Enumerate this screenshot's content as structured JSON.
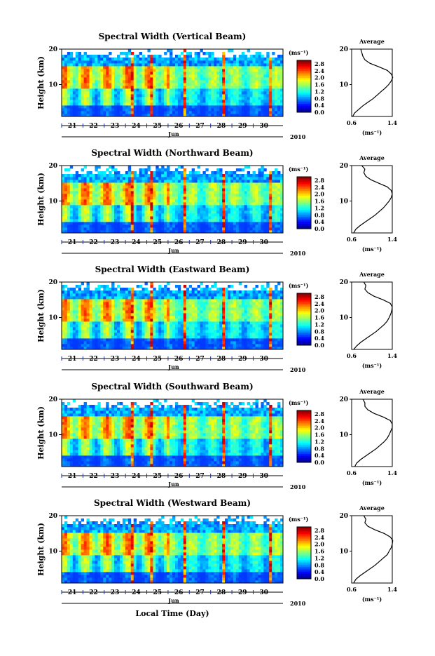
{
  "figure": {
    "xlabel": "Local Time (Day)",
    "ylabel": "Height (km)",
    "month": "Jun",
    "year": "2010",
    "unit": "(ms⁻¹)",
    "avg_title": "Average",
    "avg_xlabel": "(ms⁻¹)"
  },
  "chart_data": [
    {
      "type": "heatmap",
      "title": "Spectral Width (Vertical Beam)",
      "xlabel": "Jun",
      "ylabel": "Height (km)",
      "x_ticks": [
        "21",
        "22",
        "23",
        "24",
        "25",
        "26",
        "27",
        "28",
        "29",
        "30"
      ],
      "y_ticks": [
        "10",
        "20"
      ],
      "ylim": [
        1,
        20
      ],
      "colorbar": {
        "label": "(ms⁻¹)",
        "ticks": [
          "0.0",
          "0.4",
          "0.8",
          "1.2",
          "1.6",
          "2.0",
          "2.4",
          "2.8"
        ],
        "range": [
          0,
          3.0
        ]
      },
      "average_profile": {
        "title": "Average",
        "xlabel": "(ms⁻¹)",
        "xlim": [
          0.6,
          1.4
        ],
        "x_ticks": [
          "0.6",
          "1.4"
        ],
        "y_ticks": [
          "10",
          "20"
        ],
        "heights": [
          1,
          2,
          3,
          4,
          5,
          6,
          7,
          8,
          9,
          10,
          11,
          12,
          13,
          14,
          15,
          16,
          17,
          18,
          19,
          20
        ],
        "values": [
          0.62,
          0.66,
          0.74,
          0.82,
          0.92,
          1.02,
          1.1,
          1.18,
          1.26,
          1.33,
          1.38,
          1.41,
          1.38,
          1.3,
          1.14,
          0.96,
          0.86,
          0.82,
          0.8,
          0.78
        ]
      }
    },
    {
      "type": "heatmap",
      "title": "Spectral Width (Northward Beam)",
      "xlabel": "Jun",
      "ylabel": "Height (km)",
      "x_ticks": [
        "21",
        "22",
        "23",
        "24",
        "25",
        "26",
        "27",
        "28",
        "29",
        "30"
      ],
      "y_ticks": [
        "10",
        "20"
      ],
      "ylim": [
        1,
        20
      ],
      "colorbar": {
        "label": "(ms⁻¹)",
        "ticks": [
          "0.0",
          "0.4",
          "0.8",
          "1.2",
          "1.6",
          "2.0",
          "2.4",
          "2.8"
        ],
        "range": [
          0,
          3.0
        ]
      },
      "average_profile": {
        "title": "Average",
        "xlabel": "(ms⁻¹)",
        "xlim": [
          0.6,
          1.4
        ],
        "x_ticks": [
          "0.6",
          "1.4"
        ],
        "y_ticks": [
          "10",
          "20"
        ],
        "heights": [
          1,
          2,
          3,
          4,
          5,
          6,
          7,
          8,
          9,
          10,
          11,
          12,
          13,
          14,
          15,
          16,
          17,
          18,
          19,
          20
        ],
        "values": [
          0.64,
          0.68,
          0.76,
          0.86,
          0.96,
          1.06,
          1.14,
          1.22,
          1.28,
          1.34,
          1.38,
          1.4,
          1.38,
          1.3,
          1.14,
          0.98,
          0.88,
          0.84,
          0.86,
          0.8
        ]
      }
    },
    {
      "type": "heatmap",
      "title": "Spectral Width (Eastward Beam)",
      "xlabel": "Jun",
      "ylabel": "Height (km)",
      "x_ticks": [
        "21",
        "22",
        "23",
        "24",
        "25",
        "26",
        "27",
        "28",
        "29",
        "30"
      ],
      "y_ticks": [
        "10",
        "20"
      ],
      "ylim": [
        1,
        20
      ],
      "colorbar": {
        "label": "(ms⁻¹)",
        "ticks": [
          "0.0",
          "0.4",
          "0.8",
          "1.2",
          "1.6",
          "2.0",
          "2.4",
          "2.8"
        ],
        "range": [
          0,
          3.0
        ]
      },
      "average_profile": {
        "title": "Average",
        "xlabel": "(ms⁻¹)",
        "xlim": [
          0.6,
          1.4
        ],
        "x_ticks": [
          "0.6",
          "1.4"
        ],
        "y_ticks": [
          "10",
          "20"
        ],
        "heights": [
          1,
          2,
          3,
          4,
          5,
          6,
          7,
          8,
          9,
          10,
          11,
          12,
          13,
          14,
          15,
          16,
          17,
          18,
          19,
          20
        ],
        "values": [
          0.64,
          0.7,
          0.78,
          0.88,
          0.98,
          1.08,
          1.16,
          1.24,
          1.3,
          1.34,
          1.37,
          1.39,
          1.4,
          1.36,
          1.22,
          1.04,
          0.92,
          0.86,
          0.88,
          0.84
        ]
      }
    },
    {
      "type": "heatmap",
      "title": "Spectral Width (Southward Beam)",
      "xlabel": "Jun",
      "ylabel": "Height (km)",
      "x_ticks": [
        "21",
        "22",
        "23",
        "24",
        "25",
        "26",
        "27",
        "28",
        "29",
        "30"
      ],
      "y_ticks": [
        "10",
        "20"
      ],
      "ylim": [
        1,
        20
      ],
      "colorbar": {
        "label": "(ms⁻¹)",
        "ticks": [
          "0.0",
          "0.4",
          "0.8",
          "1.2",
          "1.6",
          "2.0",
          "2.4",
          "2.8"
        ],
        "range": [
          0,
          3.0
        ]
      },
      "average_profile": {
        "title": "Average",
        "xlabel": "(ms⁻¹)",
        "xlim": [
          0.6,
          1.4
        ],
        "x_ticks": [
          "0.6",
          "1.4"
        ],
        "y_ticks": [
          "10",
          "20"
        ],
        "heights": [
          1,
          2,
          3,
          4,
          5,
          6,
          7,
          8,
          9,
          10,
          11,
          12,
          13,
          14,
          15,
          16,
          17,
          18,
          19,
          20
        ],
        "values": [
          0.66,
          0.7,
          0.78,
          0.88,
          0.98,
          1.08,
          1.16,
          1.24,
          1.3,
          1.34,
          1.37,
          1.4,
          1.4,
          1.36,
          1.22,
          1.04,
          0.92,
          0.86,
          0.86,
          0.82
        ]
      }
    },
    {
      "type": "heatmap",
      "title": "Spectral Width (Westward Beam)",
      "xlabel": "Jun",
      "ylabel": "Height (km)",
      "x_ticks": [
        "21",
        "22",
        "23",
        "24",
        "25",
        "26",
        "27",
        "28",
        "29",
        "30"
      ],
      "y_ticks": [
        "10",
        "20"
      ],
      "ylim": [
        1,
        20
      ],
      "colorbar": {
        "label": "(ms⁻¹)",
        "ticks": [
          "0.0",
          "0.4",
          "0.8",
          "1.2",
          "1.6",
          "2.0",
          "2.4",
          "2.8"
        ],
        "range": [
          0,
          3.0
        ]
      },
      "average_profile": {
        "title": "Average",
        "xlabel": "(ms⁻¹)",
        "xlim": [
          0.6,
          1.4
        ],
        "x_ticks": [
          "0.6",
          "1.4"
        ],
        "y_ticks": [
          "10",
          "20"
        ],
        "heights": [
          1,
          2,
          3,
          4,
          5,
          6,
          7,
          8,
          9,
          10,
          11,
          12,
          13,
          14,
          15,
          16,
          17,
          18,
          19,
          20
        ],
        "values": [
          0.64,
          0.68,
          0.76,
          0.86,
          0.96,
          1.06,
          1.14,
          1.22,
          1.3,
          1.34,
          1.38,
          1.4,
          1.41,
          1.36,
          1.24,
          1.06,
          0.92,
          0.86,
          0.88,
          0.84
        ]
      }
    }
  ]
}
